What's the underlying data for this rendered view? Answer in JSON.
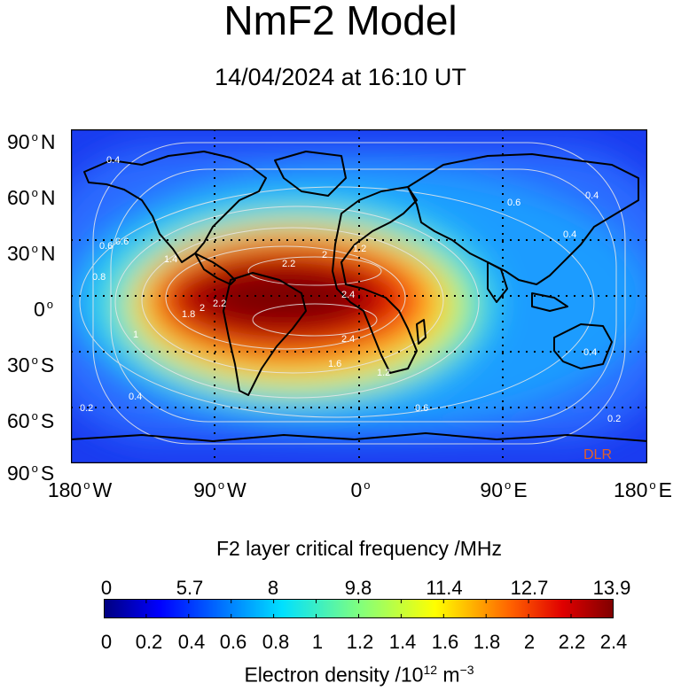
{
  "header": {
    "title": "NmF2 Model",
    "subtitle": "14/04/2024 at 16:10 UT"
  },
  "map": {
    "watermark": "DLR",
    "lat_labels": [
      {
        "deg": "90",
        "hemi": "N"
      },
      {
        "deg": "60",
        "hemi": "N"
      },
      {
        "deg": "30",
        "hemi": "N"
      },
      {
        "deg": "0",
        "hemi": ""
      },
      {
        "deg": "30",
        "hemi": "S"
      },
      {
        "deg": "60",
        "hemi": "S"
      },
      {
        "deg": "90",
        "hemi": "S"
      }
    ],
    "lon_labels": [
      {
        "deg": "180",
        "hemi": "W"
      },
      {
        "deg": "90",
        "hemi": "W"
      },
      {
        "deg": "0",
        "hemi": ""
      },
      {
        "deg": "90",
        "hemi": "E"
      },
      {
        "deg": "180",
        "hemi": "E"
      }
    ],
    "contour_labels": [
      "0.4",
      "0.6",
      "0.4",
      "0.6",
      "0.8",
      "2.2",
      "2",
      "1.2",
      "1.8",
      "2",
      "2.2",
      "2.4",
      "2.4",
      "1.6",
      "1.2",
      "0.4",
      "0.2",
      "0.4",
      "0.6",
      "0.2",
      "0.4",
      "0.6",
      "1",
      "1.4"
    ],
    "colors": {
      "ocean_deep": "#1a3cf0",
      "peak": "#7a0000",
      "coast": "#000000",
      "contour": "#e8e8e8",
      "watermark": "#e0602a"
    }
  },
  "colorbar": {
    "title": "F2 layer critical frequency /MHz",
    "top_labels": [
      "0",
      "5.7",
      "8",
      "9.8",
      "11.4",
      "12.7",
      "13.9"
    ],
    "bottom_labels": [
      "0",
      "0.2",
      "0.4",
      "0.6",
      "0.8",
      "1",
      "1.2",
      "1.4",
      "1.6",
      "1.8",
      "2",
      "2.2",
      "2.4"
    ],
    "xlabel_prefix": "Electron density /10",
    "xlabel_exp": "12",
    "xlabel_unit": " m",
    "xlabel_unit_exp": "−3"
  }
}
